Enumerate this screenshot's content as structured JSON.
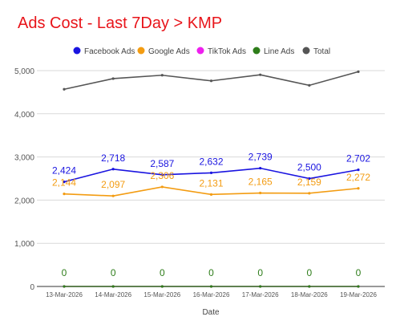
{
  "chart_data": {
    "type": "line",
    "title": "Ads Cost - Last 7Day > KMP",
    "xlabel": "Date",
    "ylabel": "",
    "categories": [
      "13-Mar-2026",
      "14-Mar-2026",
      "15-Mar-2026",
      "16-Mar-2026",
      "17-Mar-2026",
      "18-Mar-2026",
      "19-Mar-2026"
    ],
    "ylim": [
      0,
      5000
    ],
    "yticks": [
      0,
      1000,
      2000,
      3000,
      4000,
      5000
    ],
    "ytick_labels": [
      "0",
      "1,000",
      "2,000",
      "3,000",
      "4,000",
      "5,000"
    ],
    "grid": true,
    "legend_position": "top",
    "series": [
      {
        "name": "Facebook Ads",
        "color": "#1a14e0",
        "values": [
          2424,
          2718,
          2587,
          2632,
          2739,
          2500,
          2702
        ],
        "labels": [
          "2,424",
          "2,718",
          "2,587",
          "2,632",
          "2,739",
          "2,500",
          "2,702"
        ]
      },
      {
        "name": "Google Ads",
        "color": "#f39c12",
        "values": [
          2144,
          2097,
          2306,
          2131,
          2165,
          2159,
          2272
        ],
        "labels": [
          "2,144",
          "2,097",
          "2,306",
          "2,131",
          "2,165",
          "2,159",
          "2,272"
        ]
      },
      {
        "name": "TikTok Ads",
        "color": "#ee1fee",
        "values": [
          0,
          0,
          0,
          0,
          0,
          0,
          0
        ],
        "labels": []
      },
      {
        "name": "Line Ads",
        "color": "#2e7d1a",
        "values": [
          0,
          0,
          0,
          0,
          0,
          0,
          0
        ],
        "labels": [
          "0",
          "0",
          "0",
          "0",
          "0",
          "0",
          "0"
        ]
      },
      {
        "name": "Total",
        "color": "#555555",
        "values": [
          4568,
          4815,
          4893,
          4763,
          4904,
          4659,
          4974
        ],
        "labels": []
      }
    ]
  }
}
